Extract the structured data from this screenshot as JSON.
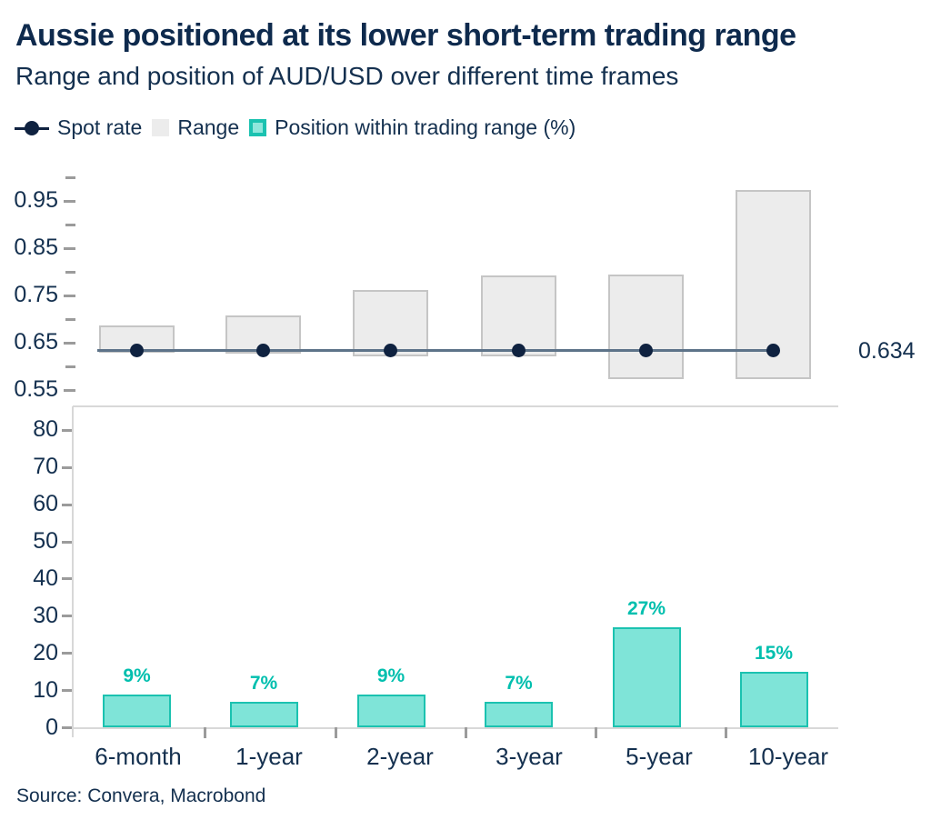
{
  "header": {
    "title": "Aussie positioned at its lower short-term trading range",
    "subtitle": "Range and position of AUD/USD over different time frames"
  },
  "legend": {
    "items": [
      {
        "label": "Spot rate",
        "marker": "line-dot-icon"
      },
      {
        "label": "Range",
        "marker": "gray-square-icon"
      },
      {
        "label": "Position within trading range (%)",
        "marker": "teal-square-icon"
      }
    ]
  },
  "chart_data": [
    {
      "type": "bar",
      "name": "range-panel",
      "title": "Range and position of AUD/USD over different time frames (upper panel)",
      "categories": [
        "6-month",
        "1-year",
        "2-year",
        "3-year",
        "5-year",
        "10-year"
      ],
      "series": [
        {
          "name": "Range low",
          "values": [
            0.629,
            0.628,
            0.621,
            0.622,
            0.574,
            0.574
          ]
        },
        {
          "name": "Range high",
          "values": [
            0.688,
            0.709,
            0.762,
            0.793,
            0.795,
            0.974
          ]
        },
        {
          "name": "Spot rate",
          "values": [
            0.634,
            0.634,
            0.634,
            0.634,
            0.634,
            0.634
          ]
        }
      ],
      "spot_rate": 0.634,
      "spot_label": "0.634",
      "ylim": [
        0.52,
        1.0
      ],
      "yticks": [
        0.55,
        0.65,
        0.75,
        0.85,
        0.95
      ],
      "yticks_minor": [
        0.6,
        0.7,
        0.8,
        0.9,
        1.0
      ],
      "grid": false,
      "legend_position": "top"
    },
    {
      "type": "bar",
      "name": "position-panel",
      "title": "Position within trading range (%) (lower panel)",
      "categories": [
        "6-month",
        "1-year",
        "2-year",
        "3-year",
        "5-year",
        "10-year"
      ],
      "values": [
        9,
        7,
        9,
        7,
        27,
        15
      ],
      "labels": [
        "9%",
        "7%",
        "9%",
        "7%",
        "27%",
        "15%"
      ],
      "ylim": [
        0,
        85
      ],
      "yticks": [
        0,
        10,
        20,
        30,
        40,
        50,
        60,
        70,
        80
      ],
      "grid": false
    }
  ],
  "footer": {
    "source": "Source: Convera, Macrobond"
  },
  "colors": {
    "navy_text": "#14304f",
    "title_navy": "#0e2a4d",
    "range_fill": "#ececec",
    "range_border": "#c5c5c5",
    "teal_fill": "#7fe4d8",
    "teal_border": "#1bc2b0",
    "teal_label": "#00bfae",
    "legend_teal_fill": "#8fe7dc",
    "spot_line": "#5d7389",
    "spot_dot": "#0f2240",
    "axis_line": "#d8d8d8",
    "tick": "#9b9b9b"
  }
}
